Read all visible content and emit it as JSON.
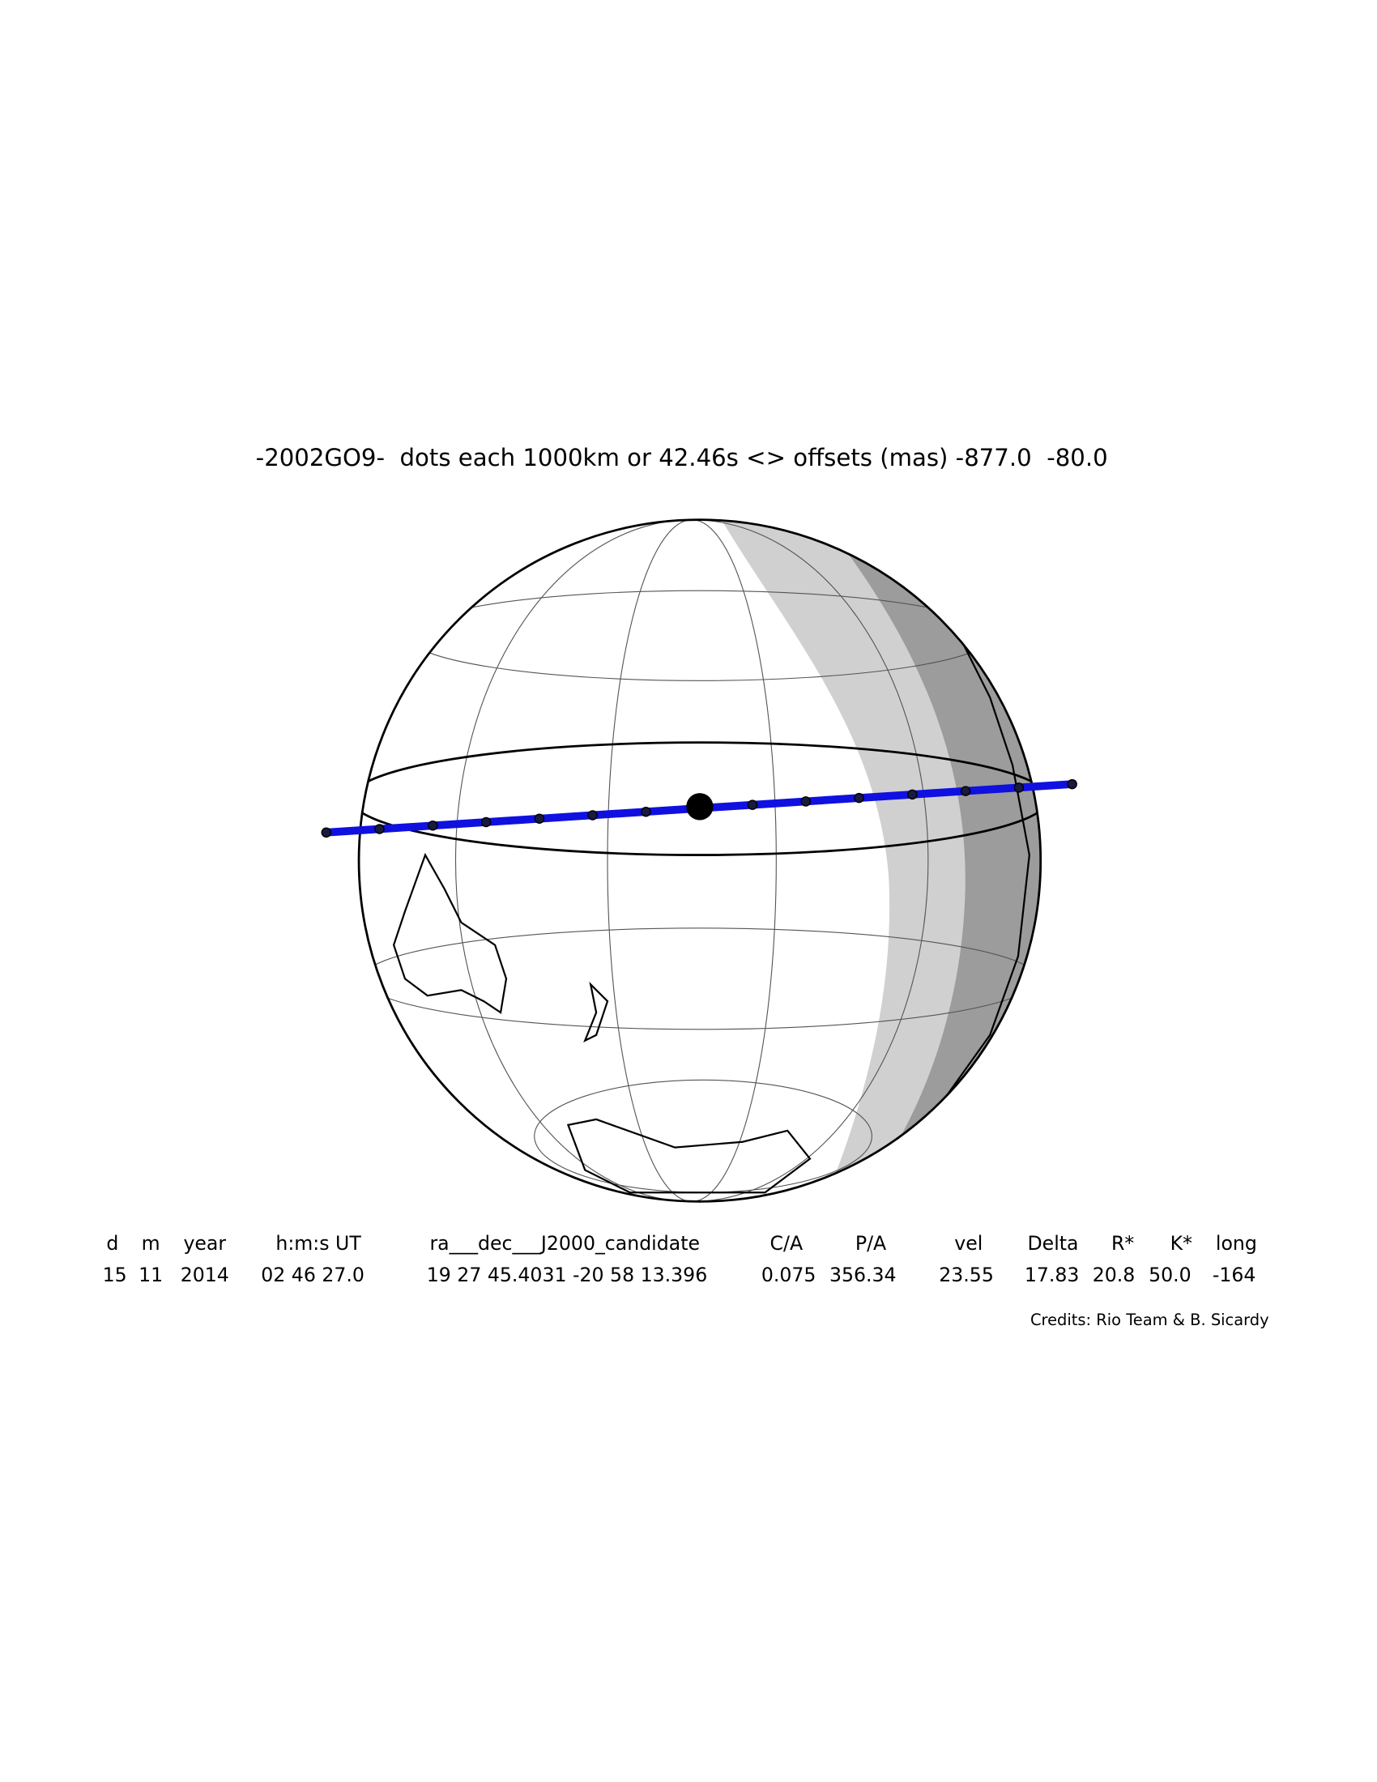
{
  "title": "-2002GO9-  dots each 1000km or 42.46s <> offsets (mas) -877.0  -80.0",
  "table": {
    "header": [
      "d",
      "m",
      "year",
      "h:m:s UT",
      "ra___dec___J2000_candidate",
      "C/A",
      "P/A",
      "vel",
      "Delta",
      "R*",
      "K*",
      "long"
    ],
    "values": [
      "15",
      "11",
      "2014",
      "02 46 27.0",
      "19 27 45.4031 -20 58 13.396",
      "0.075",
      "356.34",
      "23.55",
      "17.83",
      "20.8",
      "50.0",
      "-164"
    ]
  },
  "credits": "Credits: Rio Team & B. Sicardy"
}
